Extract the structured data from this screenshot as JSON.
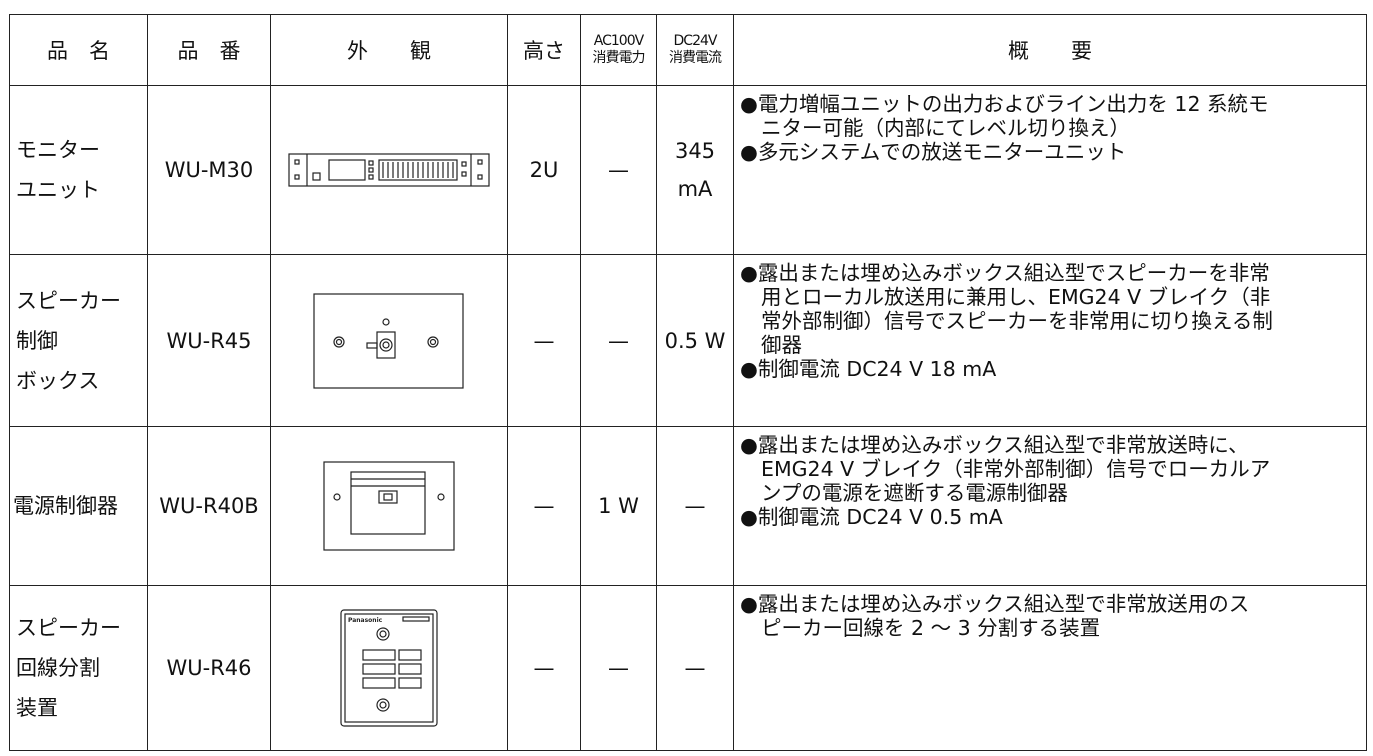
{
  "header": [
    "品　名",
    "品　番",
    "外　　観",
    "高さ",
    {
      "top": "AC100V",
      "bottom": "消費電力"
    },
    {
      "top": "DC24V",
      "bottom": "消費電流"
    },
    "概　　要"
  ],
  "rows": [
    {
      "name": [
        "モニター",
        "ユニット"
      ],
      "model": "WU-M30",
      "height": "2U",
      "ac": "—",
      "dc": [
        "345",
        "mA"
      ],
      "description": [
        [
          "●電力増幅ユニットの出力およびライン出力を 12 系統モ",
          "ニター可能（内部にてレベル切り換え）"
        ],
        [
          "●多元システムでの放送モニターユニット"
        ]
      ]
    },
    {
      "name": [
        "スピーカー",
        "制御",
        "ボックス"
      ],
      "model": "WU-R45",
      "height": "—",
      "ac": "—",
      "dc": [
        "0.5 W"
      ],
      "description": [
        [
          "●露出または埋め込みボックス組込型でスピーカーを非常",
          "用とローカル放送用に兼用し、EMG24 V ブレイク（非",
          "常外部制御）信号でスピーカーを非常用に切り換える制",
          "御器"
        ],
        [
          "●制御電流 DC24 V 18 mA"
        ]
      ]
    },
    {
      "name": [
        "電源制御器"
      ],
      "model": "WU-R40B",
      "height": "—",
      "ac": "1 W",
      "dc": [
        "—"
      ],
      "description": [
        [
          "●露出または埋め込みボックス組込型で非常放送時に、",
          "EMG24 V ブレイク（非常外部制御）信号でローカルア",
          "ンプの電源を遮断する電源制御器"
        ],
        [
          "●制御電流 DC24 V 0.5 mA"
        ]
      ]
    },
    {
      "name": [
        "スピーカー",
        "回線分割",
        "装置"
      ],
      "model": "WU-R46",
      "height": "—",
      "ac": "—",
      "dc": [
        "—"
      ],
      "panel_label": "Panasonic",
      "description": [
        [
          "●露出または埋め込みボックス組込型で非常放送用のス",
          "ピーカー回線を 2 ～ 3 分割する装置"
        ]
      ]
    }
  ]
}
